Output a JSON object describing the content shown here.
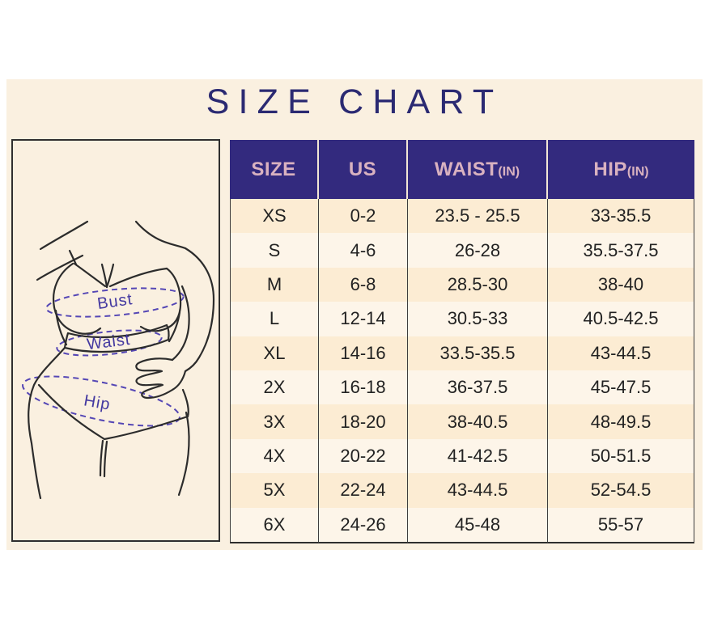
{
  "title": "SIZE CHART",
  "colors": {
    "card_background": "#faf0e0",
    "header_background": "#332a7e",
    "header_text": "#d9b2c0",
    "title_text": "#2b2a72",
    "row_odd": "#fcecd3",
    "row_even": "#fdf5e9",
    "measure_accent": "#4338a0"
  },
  "figure": {
    "labels": {
      "bust": "Bust",
      "waist": "Waist",
      "hip": "Hip"
    }
  },
  "table": {
    "columns": [
      {
        "label": "SIZE",
        "unit": ""
      },
      {
        "label": "US",
        "unit": ""
      },
      {
        "label": "WAIST",
        "unit": "(IN)"
      },
      {
        "label": "HIP",
        "unit": "(IN)"
      }
    ],
    "rows": [
      [
        "XS",
        "0-2",
        "23.5 - 25.5",
        "33-35.5"
      ],
      [
        "S",
        "4-6",
        "26-28",
        "35.5-37.5"
      ],
      [
        "M",
        "6-8",
        "28.5-30",
        "38-40"
      ],
      [
        "L",
        "12-14",
        "30.5-33",
        "40.5-42.5"
      ],
      [
        "XL",
        "14-16",
        "33.5-35.5",
        "43-44.5"
      ],
      [
        "2X",
        "16-18",
        "36-37.5",
        "45-47.5"
      ],
      [
        "3X",
        "18-20",
        "38-40.5",
        "48-49.5"
      ],
      [
        "4X",
        "20-22",
        "41-42.5",
        "50-51.5"
      ],
      [
        "5X",
        "22-24",
        "43-44.5",
        "52-54.5"
      ],
      [
        "6X",
        "24-26",
        "45-48",
        "55-57"
      ]
    ]
  }
}
